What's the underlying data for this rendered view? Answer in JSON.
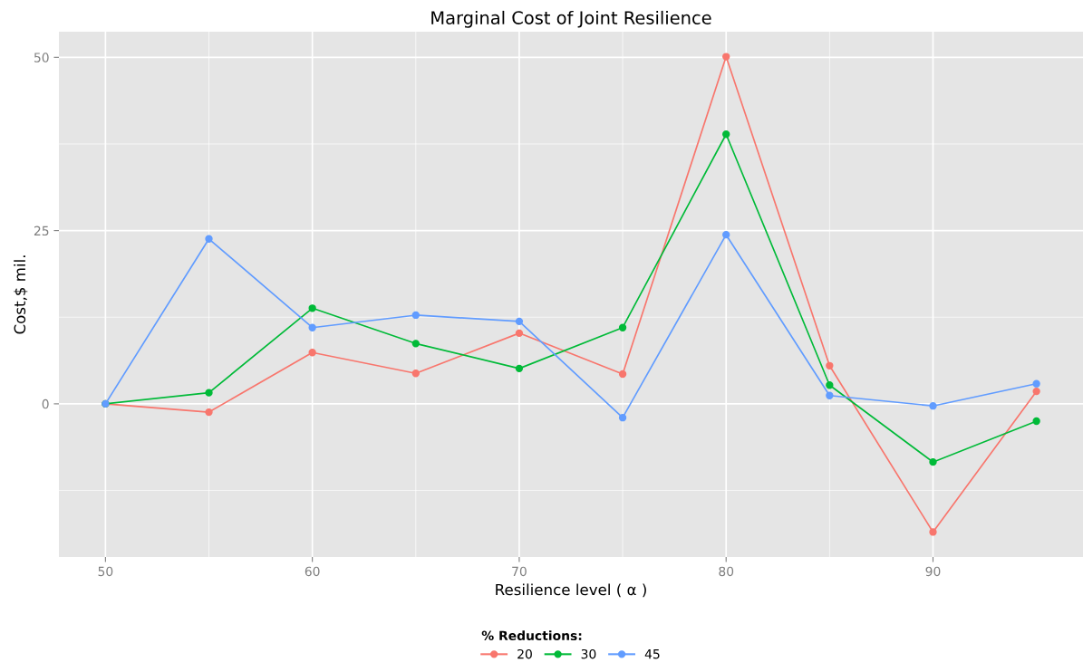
{
  "chart_data": {
    "type": "line",
    "title": "Marginal Cost of Joint Resilience",
    "xlabel": "Resilience level ( α )",
    "ylabel": "Cost,$ mil.",
    "legend_title": "% Reductions:",
    "x": [
      50,
      55,
      60,
      65,
      70,
      75,
      80,
      85,
      90,
      95
    ],
    "series": [
      {
        "name": "20",
        "color": "#f8766d",
        "values": [
          0,
          -1.2,
          7.4,
          4.4,
          10.2,
          4.3,
          50.1,
          5.5,
          -18.5,
          1.8
        ]
      },
      {
        "name": "30",
        "color": "#00ba38",
        "values": [
          0,
          1.6,
          13.8,
          8.7,
          5.1,
          11.0,
          38.9,
          2.7,
          -8.4,
          -2.5
        ]
      },
      {
        "name": "45",
        "color": "#619cff",
        "values": [
          0,
          23.8,
          11.0,
          12.8,
          11.9,
          -2.0,
          24.4,
          1.2,
          -0.3,
          2.9
        ]
      }
    ],
    "xlim": [
      47.75,
      97.25
    ],
    "ylim": [
      -22.1,
      53.7
    ],
    "xticks": [
      50,
      60,
      70,
      80,
      90
    ],
    "yticks": [
      0,
      25,
      50
    ],
    "grid": true,
    "legend": "bottom",
    "marker": "circle",
    "line_style": "solid"
  }
}
